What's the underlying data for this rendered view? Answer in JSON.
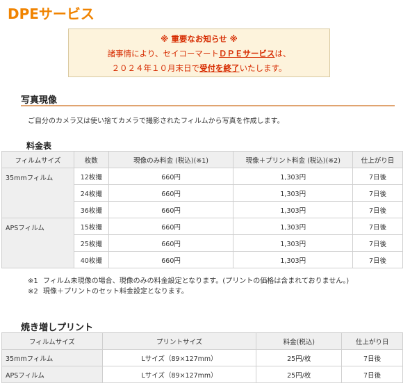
{
  "page": {
    "title": "DPEサービス"
  },
  "notice": {
    "heading": "※ 重要なお知らせ ※",
    "line1_prefix": "諸事情により、セイコーマート",
    "line1_emph": "ＤＰＥサービス",
    "line1_suffix": "は、",
    "line2_prefix": "２０２４年１０月末日で",
    "line2_emph": "受付を終了",
    "line2_suffix": "いたします。"
  },
  "developing": {
    "title": "写真現像",
    "description": "ご自分のカメラ又は使い捨てカメラで撮影されたフィルムから写真を作成します。",
    "price_table_title": "料金表",
    "headers": [
      "フィルムサイズ",
      "枚数",
      "現像のみ料金 (税込)(※1)",
      "現像＋プリント料金 (税込)(※2)",
      "仕上がり日"
    ],
    "groups": [
      {
        "film": "35mmフィルム",
        "rows": [
          {
            "count": "12枚撮",
            "dev": "660円",
            "print": "1,303円",
            "days": "7日後"
          },
          {
            "count": "24枚撮",
            "dev": "660円",
            "print": "1,303円",
            "days": "7日後"
          },
          {
            "count": "36枚撮",
            "dev": "660円",
            "print": "1,303円",
            "days": "7日後"
          }
        ]
      },
      {
        "film": "APSフィルム",
        "rows": [
          {
            "count": "15枚撮",
            "dev": "660円",
            "print": "1,303円",
            "days": "7日後"
          },
          {
            "count": "25枚撮",
            "dev": "660円",
            "print": "1,303円",
            "days": "7日後"
          },
          {
            "count": "40枚撮",
            "dev": "660円",
            "print": "1,303円",
            "days": "7日後"
          }
        ]
      }
    ],
    "notes": [
      {
        "mark": "※1",
        "text": "フィルム未現像の場合、現像のみの料金設定となります。(プリントの価格は含まれておりません。)"
      },
      {
        "mark": "※2",
        "text": "現像＋プリントのセット料金設定となります。"
      }
    ]
  },
  "reprint": {
    "title": "焼き増しプリント",
    "headers": [
      "フィルムサイズ",
      "プリントサイズ",
      "料金(税込)",
      "仕上がり日"
    ],
    "rows": [
      {
        "film": "35mmフィルム",
        "size": "Lサイズ（89×127mm）",
        "price": "25円/枚",
        "days": "7日後"
      },
      {
        "film": "APSフィルム",
        "size": "Lサイズ（89×127mm）",
        "price": "25円/枚",
        "days": "7日後"
      }
    ]
  }
}
